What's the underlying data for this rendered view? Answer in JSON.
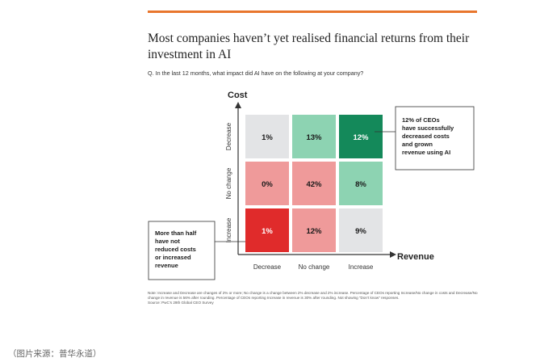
{
  "headline": "Most companies haven’t yet realised financial returns from their investment in AI",
  "question": "Q. In the last 12 months, what impact did AI have on the following at your company?",
  "chart_data": {
    "type": "heatmap",
    "y_axis_label": "Cost",
    "x_axis_label": "Revenue",
    "rows": [
      "Decrease",
      "No change",
      "Increase"
    ],
    "columns": [
      "Decrease",
      "No change",
      "Increase"
    ],
    "values": [
      [
        1,
        13,
        12
      ],
      [
        0,
        42,
        8
      ],
      [
        1,
        12,
        9
      ]
    ],
    "value_labels": [
      [
        "1%",
        "13%",
        "12%"
      ],
      [
        "0%",
        "42%",
        "8%"
      ],
      [
        "1%",
        "12%",
        "9%"
      ]
    ],
    "cell_colors": [
      [
        "#e3e4e6",
        "#8dd3b2",
        "#14895a"
      ],
      [
        "#ef9a9a",
        "#ef9a9a",
        "#8dd3b2"
      ],
      [
        "#e02b2b",
        "#ef9a9a",
        "#e3e4e6"
      ]
    ],
    "annotations": [
      {
        "text": "12% of CEOs have successfully decreased costs and grown revenue using AI",
        "position": "right"
      },
      {
        "text": "More than half have not reduced costs or increased revenue",
        "position": "left"
      }
    ]
  },
  "footnote": {
    "note": "Note: Increase and Decrease are changes of 2% or more; No change is a change between 2% decrease and 2% increase. Percentage of CEOs reporting Increase/No change in costs and Decrease/No change in revenue is 56% after rounding. Percentage of CEOs reporting Increase in revenue is 30% after rounding. Not showing “Don’t know” responses.",
    "source": "Source: PwC’s 29th Global CEO Survey"
  },
  "caption": "（图片来源：普华永道）"
}
